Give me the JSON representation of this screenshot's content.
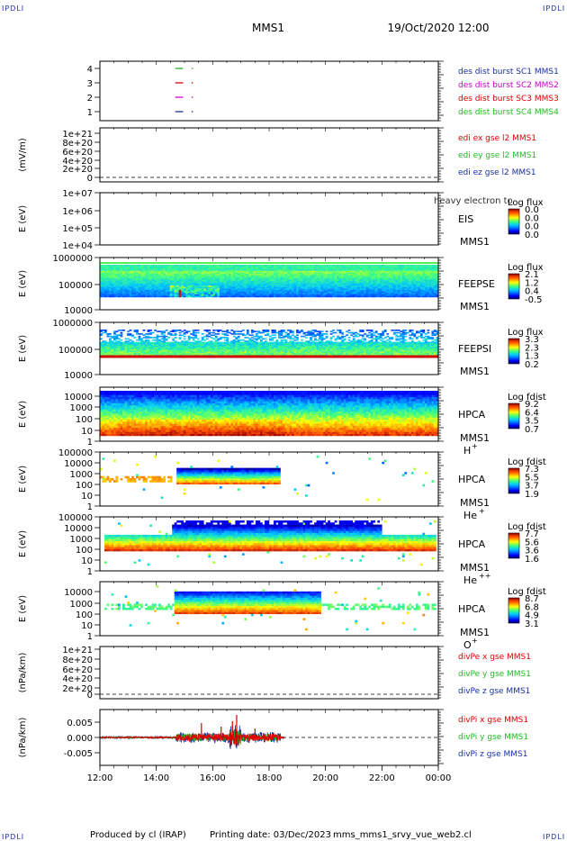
{
  "header": {
    "spacecraft": "MMS1",
    "datetime": "19/Oct/2020 12:00",
    "corner_label": "IPDLI"
  },
  "footer": {
    "producer": "Produced by cl (IRAP)",
    "printing_date": "Printing date: 03/Dec/2023",
    "filename": "mms_mms1_srvy_vue_web2.cl"
  },
  "chart_data": [
    {
      "type": "line",
      "panel": "burst",
      "ylabel": "",
      "yticks": [
        "4",
        "3",
        "2",
        "1"
      ],
      "ylim": [
        0.5,
        4.5
      ],
      "series": [
        {
          "name": "des dist burst SC1 MMS1",
          "color": "#1a2fa8",
          "y": 1,
          "segments": [
            [
              14.67,
              14.95
            ],
            [
              15.25,
              15.3
            ]
          ]
        },
        {
          "name": "des dist burst SC2 MMS2",
          "color": "#cc00cc",
          "y": 2,
          "segments": [
            [
              14.67,
              14.95
            ],
            [
              15.25,
              15.3
            ]
          ]
        },
        {
          "name": "des dist burst SC3 MMS3",
          "color": "#dd0000",
          "y": 3,
          "segments": [
            [
              14.67,
              14.95
            ],
            [
              15.25,
              15.3
            ]
          ]
        },
        {
          "name": "des dist burst SC4 MMS4",
          "color": "#22bb22",
          "y": 4,
          "segments": [
            [
              14.67,
              14.95
            ],
            [
              15.25,
              15.3
            ]
          ]
        }
      ]
    },
    {
      "type": "line",
      "panel": "edi",
      "ylabel": "(mV/m)",
      "yticks": [
        "1e+21",
        "8e+20",
        "6e+20",
        "4e+20",
        "2e+20",
        "0"
      ],
      "ylim": [
        0,
        1e+21
      ],
      "zero_line": true,
      "series": [
        {
          "name": "edi ex gse l2 MMS1",
          "color": "#dd0000"
        },
        {
          "name": "edi ey gse l2 MMS1",
          "color": "#22bb22"
        },
        {
          "name": "edi ez gse l2 MMS1",
          "color": "#1a2fa8"
        }
      ]
    },
    {
      "type": "heatmap",
      "panel": "eis",
      "ylabel": "E (eV)",
      "yticks": [
        "1e+07",
        "1e+06",
        "1e+05",
        "1e+04"
      ],
      "ylim": [
        10000.0,
        10000000.0
      ],
      "instrument": "EIS",
      "spacecraft": "MMS1",
      "overlay_text": "heavy electron to",
      "cbar_title": "Log flux",
      "cbar_ticks": [
        "0.0",
        "0.0",
        "0.0",
        "0.0"
      ]
    },
    {
      "type": "heatmap",
      "panel": "feepse",
      "ylabel": "E (eV)",
      "yticks": [
        "1000000",
        "100000",
        "10000"
      ],
      "ylim": [
        10000,
        1000000
      ],
      "instrument": "FEEPSE",
      "spacecraft": "MMS1",
      "cbar_title": "Log flux",
      "cbar_ticks": [
        "2.1",
        "1.2",
        "0.4",
        "-0.5"
      ]
    },
    {
      "type": "heatmap",
      "panel": "feepsi",
      "ylabel": "E (eV)",
      "yticks": [
        "1000000",
        "100000",
        "10000"
      ],
      "ylim": [
        10000,
        1000000
      ],
      "instrument": "FEEPSI",
      "spacecraft": "MMS1",
      "cbar_title": "Log flux",
      "cbar_ticks": [
        "3.3",
        "2.3",
        "1.3",
        "0.2"
      ]
    },
    {
      "type": "heatmap",
      "panel": "hpca-h",
      "ylabel": "E (eV)",
      "yticks": [
        "10000",
        "1000",
        "100",
        "10",
        "1"
      ],
      "ylim": [
        1,
        40000
      ],
      "instrument": "HPCA",
      "spacecraft": "MMS1",
      "species": "H",
      "charge": "+",
      "cbar_title": "Log fdist",
      "cbar_ticks": [
        "9.2",
        "6.4",
        "3.5",
        "0.7"
      ]
    },
    {
      "type": "heatmap",
      "panel": "hpca-he",
      "ylabel": "E (eV)",
      "yticks": [
        "100000",
        "10000",
        "1000",
        "100",
        "10",
        "1"
      ],
      "ylim": [
        1,
        100000
      ],
      "instrument": "HPCA",
      "spacecraft": "MMS1",
      "species": "He",
      "charge": "+",
      "cbar_title": "Log fdist",
      "cbar_ticks": [
        "7.3",
        "5.5",
        "3.7",
        "1.9"
      ]
    },
    {
      "type": "heatmap",
      "panel": "hpca-hepp",
      "ylabel": "E (eV)",
      "yticks": [
        "100000",
        "10000",
        "1000",
        "100",
        "10",
        "1"
      ],
      "ylim": [
        1,
        100000
      ],
      "instrument": "HPCA",
      "spacecraft": "MMS1",
      "species": "He",
      "charge": "++",
      "cbar_title": "Log fdist",
      "cbar_ticks": [
        "7.7",
        "5.6",
        "3.6",
        "1.6"
      ]
    },
    {
      "type": "heatmap",
      "panel": "hpca-o",
      "ylabel": "E (eV)",
      "yticks": [
        "10000",
        "1000",
        "100",
        "10",
        "1"
      ],
      "ylim": [
        1,
        20000
      ],
      "instrument": "HPCA",
      "spacecraft": "MMS1",
      "species": "O",
      "charge": "+",
      "cbar_title": "Log fdist",
      "cbar_ticks": [
        "8.7",
        "6.8",
        "4.9",
        "3.1"
      ]
    },
    {
      "type": "line",
      "panel": "divpe",
      "ylabel": "(nPa/km)",
      "yticks": [
        "1e+21",
        "8e+20",
        "6e+20",
        "4e+20",
        "2e+20",
        "0"
      ],
      "ylim": [
        0,
        1e+21
      ],
      "zero_line": true,
      "series": [
        {
          "name": "divPe x gse MMS1",
          "color": "#dd0000"
        },
        {
          "name": "divPe y gse MMS1",
          "color": "#22bb22"
        },
        {
          "name": "divPe z gse MMS1",
          "color": "#1a2fa8"
        }
      ]
    },
    {
      "type": "line",
      "panel": "divpi",
      "ylabel": "(nPa/km)",
      "yticks": [
        "0.005",
        "0.000",
        "-0.005"
      ],
      "ylim": [
        -0.008,
        0.008
      ],
      "zero_line": true,
      "data_range_hours": [
        12.0,
        18.55
      ],
      "series": [
        {
          "name": "divPi x gse MMS1",
          "color": "#dd0000"
        },
        {
          "name": "divPi y gse MMS1",
          "color": "#22bb22"
        },
        {
          "name": "divPi z gse MMS1",
          "color": "#1a2fa8"
        }
      ]
    }
  ],
  "x_axis": {
    "ticks": [
      "12:00",
      "14:00",
      "16:00",
      "18:00",
      "20:00",
      "22:00",
      "00:00"
    ],
    "range_hours": [
      12,
      24
    ]
  }
}
